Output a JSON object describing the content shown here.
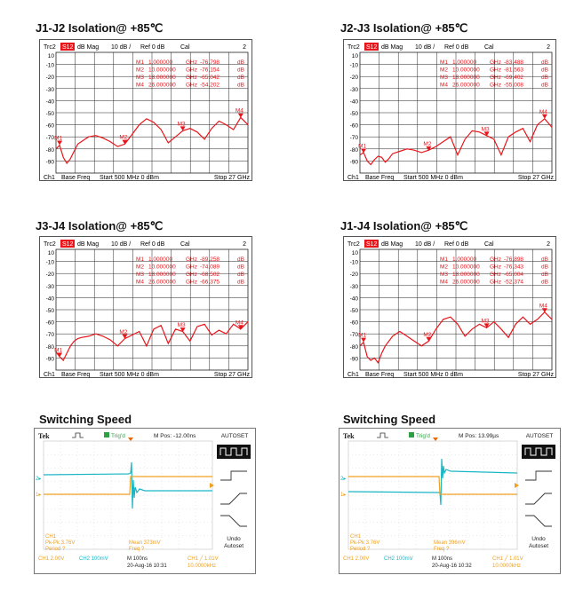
{
  "chart_data": [
    {
      "type": "line",
      "title": "J1-J2 Isolation@ +85℃",
      "header": {
        "trace": "Trc2",
        "param": "S12",
        "format": "dB Mag",
        "scale": "10 dB /",
        "ref": "Ref 0 dB",
        "cal": "Cal",
        "trace_no": "2"
      },
      "markers": [
        {
          "name": "M1",
          "freq": "1.000000",
          "unit": "GHz",
          "value": "-76.798",
          "vunit": "dB",
          "x": 1,
          "y": -76.8
        },
        {
          "name": "M2",
          "freq": "10.000000",
          "unit": "GHz",
          "value": "-76.154",
          "vunit": "dB",
          "x": 10,
          "y": -76.2
        },
        {
          "name": "M3",
          "freq": "18.000000",
          "unit": "GHz",
          "value": "-65.042",
          "vunit": "dB",
          "x": 18,
          "y": -65.0
        },
        {
          "name": "M4",
          "freq": "26.000000",
          "unit": "GHz",
          "value": "-54.202",
          "vunit": "dB",
          "x": 26,
          "y": -54.2
        }
      ],
      "ytick_labels": [
        "10",
        "-10",
        "-20",
        "-30",
        "-40",
        "-50",
        "-60",
        "-70",
        "-80",
        "-90"
      ],
      "ylim": [
        -100,
        0
      ],
      "xlim": [
        0.5,
        27
      ],
      "footer": {
        "ch": "Ch1",
        "mode": "Base Freq",
        "start": "Start  500 MHz  0 dBm",
        "stop": "Stop  27 GHz"
      },
      "series": [
        {
          "x": [
            0.5,
            1,
            1.5,
            2,
            2.5,
            3,
            3.5,
            4,
            4.5,
            5,
            6,
            7,
            8,
            9,
            10,
            11,
            12,
            13,
            14,
            15,
            16,
            17,
            18,
            19,
            20,
            21,
            22,
            23,
            24,
            25,
            26,
            27
          ],
          "y": [
            -80,
            -77,
            -87,
            -92,
            -88,
            -82,
            -76,
            -74,
            -72,
            -70,
            -69,
            -71,
            -74,
            -78,
            -76,
            -68,
            -60,
            -55,
            -58,
            -64,
            -75,
            -70,
            -65,
            -63,
            -66,
            -72,
            -63,
            -57,
            -60,
            -64,
            -54,
            -60
          ]
        }
      ]
    },
    {
      "type": "line",
      "title": "J2-J3 Isolation@ +85℃",
      "header": {
        "trace": "Trc2",
        "param": "S12",
        "format": "dB Mag",
        "scale": "10 dB /",
        "ref": "Ref 0 dB",
        "cal": "Cal",
        "trace_no": "2"
      },
      "markers": [
        {
          "name": "M1",
          "freq": "1.000000",
          "unit": "GHz",
          "value": "-83.488",
          "vunit": "dB",
          "x": 1,
          "y": -83.5
        },
        {
          "name": "M2",
          "freq": "10.000000",
          "unit": "GHz",
          "value": "-81.563",
          "vunit": "dB",
          "x": 10,
          "y": -81.6
        },
        {
          "name": "M3",
          "freq": "18.000000",
          "unit": "GHz",
          "value": "-69.402",
          "vunit": "dB",
          "x": 18,
          "y": -69.4
        },
        {
          "name": "M4",
          "freq": "26.000000",
          "unit": "GHz",
          "value": "-55.008",
          "vunit": "dB",
          "x": 26,
          "y": -55.0
        }
      ],
      "ytick_labels": [
        "10",
        "-10",
        "-20",
        "-30",
        "-40",
        "-50",
        "-60",
        "-70",
        "-80",
        "-90"
      ],
      "ylim": [
        -100,
        0
      ],
      "xlim": [
        0.5,
        27
      ],
      "footer": {
        "ch": "Ch1",
        "mode": "Base Freq",
        "start": "Start  500 MHz  0 dBm",
        "stop": "Stop  27 GHz"
      },
      "series": [
        {
          "x": [
            0.5,
            1,
            1.5,
            2,
            2.5,
            3,
            3.5,
            4,
            4.5,
            5,
            6,
            7,
            8,
            9,
            10,
            11,
            12,
            13,
            14,
            15,
            16,
            17,
            18,
            19,
            20,
            21,
            22,
            23,
            24,
            25,
            26,
            27
          ],
          "y": [
            -85,
            -83,
            -90,
            -93,
            -89,
            -86,
            -87,
            -91,
            -88,
            -84,
            -82,
            -80,
            -81,
            -83,
            -81,
            -78,
            -74,
            -70,
            -85,
            -72,
            -65,
            -66,
            -69,
            -72,
            -85,
            -70,
            -66,
            -63,
            -74,
            -60,
            -55,
            -62
          ]
        }
      ]
    },
    {
      "type": "line",
      "title": "J3-J4 Isolation@ +85℃",
      "header": {
        "trace": "Trc2",
        "param": "S12",
        "format": "dB Mag",
        "scale": "10 dB /",
        "ref": "Ref 0 dB",
        "cal": "Cal",
        "trace_no": "2"
      },
      "markers": [
        {
          "name": "M1",
          "freq": "1.000000",
          "unit": "GHz",
          "value": "-89.258",
          "vunit": "dB",
          "x": 1,
          "y": -89.3
        },
        {
          "name": "M2",
          "freq": "10.000000",
          "unit": "GHz",
          "value": "-74.089",
          "vunit": "dB",
          "x": 10,
          "y": -74.1
        },
        {
          "name": "M3",
          "freq": "18.000000",
          "unit": "GHz",
          "value": "-68.502",
          "vunit": "dB",
          "x": 18,
          "y": -68.5
        },
        {
          "name": "M4",
          "freq": "26.000000",
          "unit": "GHz",
          "value": "-66.375",
          "vunit": "dB",
          "x": 26,
          "y": -66.4
        }
      ],
      "ytick_labels": [
        "10",
        "-10",
        "-20",
        "-30",
        "-40",
        "-50",
        "-60",
        "-70",
        "-80",
        "-90"
      ],
      "ylim": [
        -100,
        0
      ],
      "xlim": [
        0.5,
        27
      ],
      "footer": {
        "ch": "Ch1",
        "mode": "Base Freq",
        "start": "Start  500 MHz  0 dBm",
        "stop": "Stop  27 GHz"
      },
      "series": [
        {
          "x": [
            0.5,
            1,
            1.5,
            2,
            2.5,
            3,
            3.5,
            4,
            5,
            6,
            7,
            8,
            9,
            10,
            11,
            12,
            13,
            14,
            15,
            16,
            17,
            18,
            19,
            20,
            21,
            22,
            23,
            24,
            25,
            26,
            27
          ],
          "y": [
            -85,
            -89,
            -92,
            -86,
            -80,
            -76,
            -74,
            -73,
            -72,
            -70,
            -72,
            -75,
            -80,
            -74,
            -71,
            -68,
            -80,
            -66,
            -63,
            -78,
            -66,
            -68,
            -76,
            -64,
            -62,
            -71,
            -67,
            -70,
            -62,
            -66,
            -60
          ]
        }
      ]
    },
    {
      "type": "line",
      "title": "J1-J4 Isolation@ +85℃",
      "header": {
        "trace": "Trc2",
        "param": "S12",
        "format": "dB Mag",
        "scale": "10 dB /",
        "ref": "Ref 0 dB",
        "cal": "Cal",
        "trace_no": "2"
      },
      "markers": [
        {
          "name": "M1",
          "freq": "1.000000",
          "unit": "GHz",
          "value": "-76.898",
          "vunit": "dB",
          "x": 1,
          "y": -76.9
        },
        {
          "name": "M2",
          "freq": "10.000000",
          "unit": "GHz",
          "value": "-76.343",
          "vunit": "dB",
          "x": 10,
          "y": -76.3
        },
        {
          "name": "M3",
          "freq": "18.000000",
          "unit": "GHz",
          "value": "-65.004",
          "vunit": "dB",
          "x": 18,
          "y": -65.0
        },
        {
          "name": "M4",
          "freq": "26.000000",
          "unit": "GHz",
          "value": "-52.374",
          "vunit": "dB",
          "x": 26,
          "y": -52.4
        }
      ],
      "ytick_labels": [
        "10",
        "-10",
        "-20",
        "-30",
        "-40",
        "-50",
        "-60",
        "-70",
        "-80",
        "-90"
      ],
      "ylim": [
        -100,
        0
      ],
      "xlim": [
        0.5,
        27
      ],
      "footer": {
        "ch": "Ch1",
        "mode": "Base Freq",
        "start": "Start  500 MHz  0 dBm",
        "stop": "Stop  27 GHz"
      },
      "series": [
        {
          "x": [
            0.5,
            1,
            1.5,
            2,
            2.5,
            3,
            3.5,
            4,
            4.5,
            5,
            6,
            7,
            8,
            9,
            10,
            11,
            12,
            13,
            14,
            15,
            16,
            17,
            18,
            19,
            20,
            21,
            22,
            23,
            24,
            25,
            26,
            27
          ],
          "y": [
            -80,
            -77,
            -89,
            -92,
            -90,
            -94,
            -86,
            -80,
            -76,
            -72,
            -68,
            -72,
            -76,
            -80,
            -76,
            -66,
            -58,
            -56,
            -62,
            -72,
            -66,
            -62,
            -65,
            -60,
            -66,
            -73,
            -62,
            -56,
            -62,
            -58,
            -52,
            -58
          ]
        }
      ]
    }
  ],
  "switching": [
    {
      "title": "Switching Speed",
      "brand": "Tek",
      "trigger": "Trig'd",
      "mpos": "M Pos: -12.00ns",
      "autoset": "AUTOSET",
      "undo": "Undo",
      "undo2": "Autoset",
      "meas_ch": "CH1",
      "pkpk": "Pk-Pk 3.76V",
      "period": "Period ?",
      "mean": "Mean 373mV",
      "freq": "Freq ?",
      "ch1_scale": "CH1  2.00V",
      "ch2_scale": "CH2  100mV",
      "timebase": "M 100ns",
      "date": "20-Aug-16 10:31",
      "trig_lvl": "CH1  ╱  1.01V",
      "trig_freq": "10.0000kHz"
    },
    {
      "title": "Switching Speed",
      "brand": "Tek",
      "trigger": "Trig'd",
      "mpos": "M Pos: 13.99µs",
      "autoset": "AUTOSET",
      "undo": "Undo",
      "undo2": "Autoset",
      "meas_ch": "CH1",
      "pkpk": "Pk-Pk 3.76V",
      "period": "Period ?",
      "mean": "Mean 396mV",
      "freq": "Freq ?",
      "ch1_scale": "CH1  2.00V",
      "ch2_scale": "CH2  100mV",
      "timebase": "M 100ns",
      "date": "20-Aug-16 10:32",
      "trig_lvl": "CH1  ╱  1.01V",
      "trig_freq": "10.0000kHz"
    }
  ],
  "colors": {
    "trace": "#e8161b",
    "grid": "#222222",
    "ch1": "#f0a020",
    "ch2": "#19b6c6",
    "s12_box": "#e8161b"
  }
}
